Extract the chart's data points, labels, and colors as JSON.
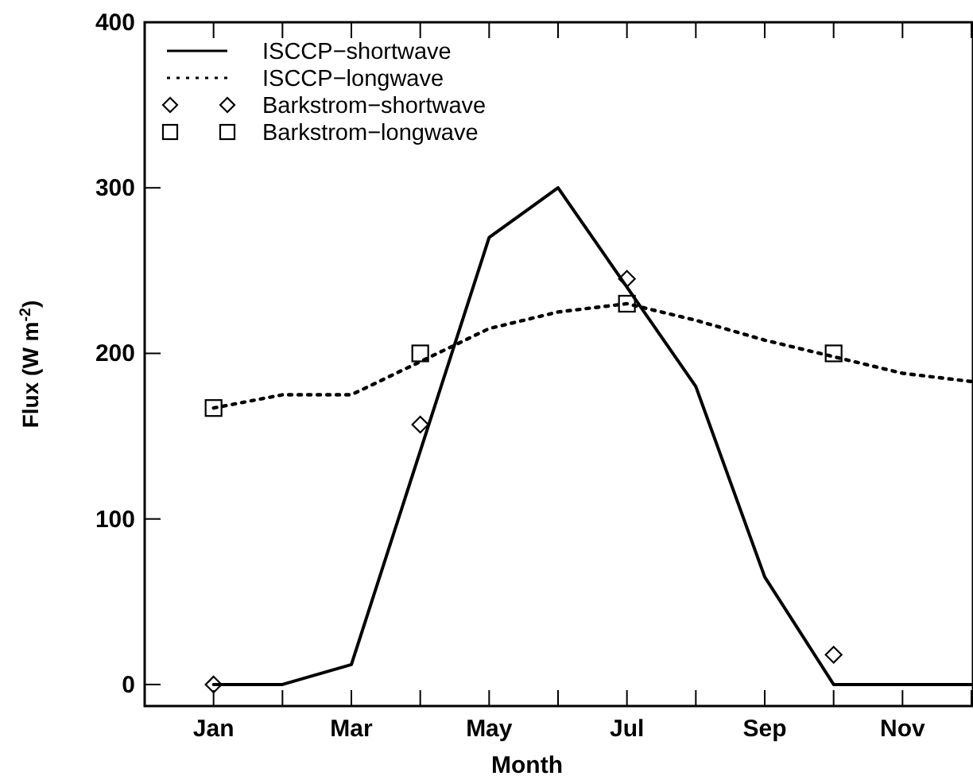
{
  "chart_data": {
    "type": "line",
    "xlabel": "Month",
    "ylabel": "Flux (W m$^{-2}$)",
    "categories": [
      "Jan",
      null,
      "Mar",
      null,
      "May",
      null,
      "Jul",
      null,
      "Sep",
      null,
      "Nov",
      null
    ],
    "ylim": [
      -13,
      400
    ],
    "yticks": [
      0,
      100,
      200,
      300,
      400
    ],
    "legend": "top left",
    "series": [
      {
        "name": "ISCCP−shortwave",
        "line_style": "solid",
        "marker": "none",
        "color": "#000000",
        "values": [
          0,
          0,
          12,
          141,
          270,
          300,
          240,
          180,
          65,
          0,
          0,
          0
        ]
      },
      {
        "name": "ISCCP−longwave",
        "line_style": "dotted",
        "marker": "none",
        "color": "#000000",
        "values": [
          167,
          175,
          175,
          195,
          215,
          225,
          230,
          220,
          208,
          198,
          188,
          183
        ]
      },
      {
        "name": "Barkstrom−shortwave",
        "type": "scatter",
        "marker": "diamond",
        "color": "#000000",
        "values": [
          0,
          null,
          null,
          157,
          null,
          null,
          245,
          null,
          null,
          18,
          null,
          null
        ]
      },
      {
        "name": "Barkstrom−longwave",
        "type": "scatter",
        "marker": "square",
        "color": "#000000",
        "values": [
          167,
          null,
          null,
          200,
          null,
          null,
          230,
          null,
          null,
          200,
          null,
          null
        ]
      }
    ]
  }
}
